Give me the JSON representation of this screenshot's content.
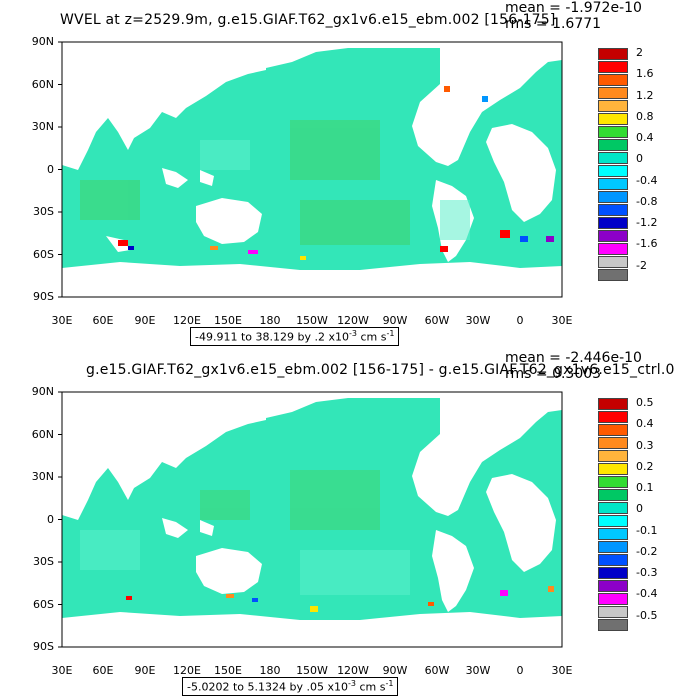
{
  "panels": [
    {
      "title": "WVEL at z=2529.9m, g.e15.GIAF.T62_gx1v6.e15_ebm.002 [156-175]",
      "mean": "mean = -1.972e-10",
      "rms": "rms = 1.6771",
      "range_text": "-49.911 to 38.129 by .2 x10",
      "range_exp": "-3",
      "range_units": " cm s",
      "range_units_exp": "-1",
      "colorbar": {
        "labels": [
          "2",
          "1.6",
          "1.2",
          "0.8",
          "0.4",
          "0",
          "-0.4",
          "-0.8",
          "-1.2",
          "-1.6",
          "-2"
        ],
        "colors": [
          "#c40000",
          "#ff0000",
          "#ff5a00",
          "#ff8a1e",
          "#ffb43c",
          "#ffe600",
          "#32dc32",
          "#00c864",
          "#00e6c8",
          "#00ffff",
          "#00c8ff",
          "#0096ff",
          "#0050ff",
          "#0000c8",
          "#8c00c8",
          "#ff00ff",
          "#c8c8c8",
          "#707070"
        ]
      }
    },
    {
      "title": "g.e15.GIAF.T62_gx1v6.e15_ebm.002 [156-175] - g.e15.GIAF.T62_gx1v6.e15_ctrl.0",
      "mean": "mean = -2.446e-10",
      "rms": "rms = 0.3003",
      "range_text": "-5.0202 to 5.1324 by .05 x10",
      "range_exp": "-3",
      "range_units": " cm s",
      "range_units_exp": "-1",
      "colorbar": {
        "labels": [
          "0.5",
          "0.4",
          "0.3",
          "0.2",
          "0.1",
          "0",
          "-0.1",
          "-0.2",
          "-0.3",
          "-0.4",
          "-0.5"
        ],
        "colors": [
          "#c40000",
          "#ff0000",
          "#ff5a00",
          "#ff8a1e",
          "#ffb43c",
          "#ffe600",
          "#32dc32",
          "#00c864",
          "#00e6c8",
          "#00ffff",
          "#00c8ff",
          "#0096ff",
          "#0050ff",
          "#0000c8",
          "#8c00c8",
          "#ff00ff",
          "#c8c8c8",
          "#707070"
        ]
      }
    }
  ],
  "axes": {
    "y_labels": [
      "90N",
      "60N",
      "30N",
      "0",
      "30S",
      "60S",
      "90S"
    ],
    "x_labels": [
      "30E",
      "60E",
      "90E",
      "120E",
      "150E",
      "180",
      "150W",
      "120W",
      "90W",
      "60W",
      "30W",
      "0",
      "30E"
    ]
  },
  "colors": {
    "ocean_main": "#33e6b8",
    "ocean_light": "#5ef0cc",
    "ocean_green": "#3fd36a",
    "land": "#ffffff",
    "frame": "#000000"
  }
}
